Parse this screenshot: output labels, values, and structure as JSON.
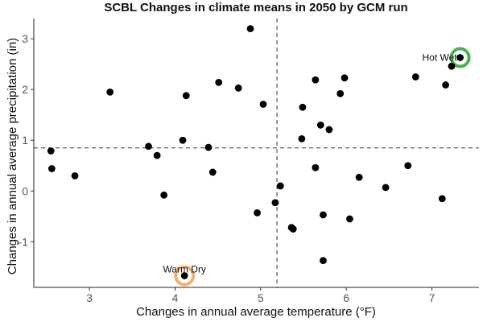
{
  "chart_data": {
    "type": "scatter",
    "title": "SCBL Changes in climate means in 2050 by GCM run",
    "xlabel": "Changes in annual average temperature (°F)",
    "ylabel": "Changes in annual average precipitation (in)",
    "xlim": [
      2.35,
      7.55
    ],
    "ylim": [
      -1.9,
      3.4
    ],
    "xticks": [
      3,
      4,
      5,
      6,
      7
    ],
    "yticks": [
      -1,
      0,
      1,
      2,
      3
    ],
    "grid": false,
    "ref_lines": {
      "x": 5.19,
      "y": 0.85
    },
    "point_color": "#000000",
    "points": [
      {
        "x": 2.55,
        "y": 0.79
      },
      {
        "x": 2.56,
        "y": 0.44
      },
      {
        "x": 2.83,
        "y": 0.3
      },
      {
        "x": 3.24,
        "y": 1.95
      },
      {
        "x": 3.69,
        "y": 0.88
      },
      {
        "x": 3.79,
        "y": 0.7
      },
      {
        "x": 3.87,
        "y": -0.08
      },
      {
        "x": 4.09,
        "y": 1.0
      },
      {
        "x": 4.13,
        "y": 1.88
      },
      {
        "x": 4.39,
        "y": 0.86
      },
      {
        "x": 4.44,
        "y": 0.37
      },
      {
        "x": 4.51,
        "y": 2.14
      },
      {
        "x": 4.74,
        "y": 2.03
      },
      {
        "x": 4.88,
        "y": 3.2
      },
      {
        "x": 4.96,
        "y": -0.43
      },
      {
        "x": 5.03,
        "y": 1.71
      },
      {
        "x": 5.17,
        "y": -0.23
      },
      {
        "x": 5.23,
        "y": 0.1
      },
      {
        "x": 5.36,
        "y": -0.72
      },
      {
        "x": 5.38,
        "y": -0.75
      },
      {
        "x": 5.48,
        "y": 1.03
      },
      {
        "x": 5.49,
        "y": 1.65
      },
      {
        "x": 5.64,
        "y": 2.19
      },
      {
        "x": 5.64,
        "y": 0.46
      },
      {
        "x": 5.7,
        "y": 1.3
      },
      {
        "x": 5.73,
        "y": -0.47
      },
      {
        "x": 5.73,
        "y": -1.37
      },
      {
        "x": 5.8,
        "y": 1.21
      },
      {
        "x": 5.93,
        "y": 1.92
      },
      {
        "x": 5.98,
        "y": 2.23
      },
      {
        "x": 6.04,
        "y": -0.55
      },
      {
        "x": 6.15,
        "y": 0.27
      },
      {
        "x": 6.46,
        "y": 0.07
      },
      {
        "x": 6.72,
        "y": 0.5
      },
      {
        "x": 6.81,
        "y": 2.25
      },
      {
        "x": 7.12,
        "y": -0.15
      },
      {
        "x": 7.16,
        "y": 2.09
      },
      {
        "x": 7.23,
        "y": 2.46
      },
      {
        "x": 7.33,
        "y": 2.63
      },
      {
        "x": 4.11,
        "y": -1.67
      }
    ],
    "annotations": [
      {
        "label": "Hot Wet",
        "x": 7.33,
        "y": 2.63,
        "color": "#4caf50"
      },
      {
        "label": "Warm Dry",
        "x": 4.11,
        "y": -1.67,
        "color": "#f4b06b"
      }
    ]
  }
}
